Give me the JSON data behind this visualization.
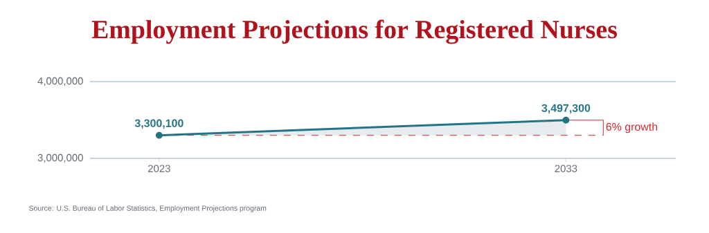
{
  "chart_data": {
    "type": "line",
    "title": "Employment Projections for Registered Nurses",
    "annotations": [
      "Source: U.S. Bureau of Labor Statistics, Employment Projections program"
    ],
    "x": [
      2023,
      2033
    ],
    "series": [
      {
        "color": "#237585",
        "values": [
          3300100,
          3497300
        ],
        "value_labels": [
          "3,300,100",
          "3,497,300"
        ],
        "lower": [
          3300100,
          3300100
        ],
        "upper": [
          3300100,
          3497300
        ]
      }
    ],
    "xlim": [
      2021.3,
      2035.7
    ],
    "xticks": [
      2023,
      2033
    ],
    "ylim": [
      3000000,
      4000000
    ],
    "yticks": [
      {
        "value": 3000000,
        "label": "3,000,000"
      },
      {
        "value": 4000000,
        "label": "4,000,000"
      }
    ],
    "ref_lines": [
      {
        "axis": "y",
        "value": 3300100,
        "label": "6% growth",
        "color": "#d0282e",
        "line_style": "dashed"
      }
    ],
    "marker": "circle",
    "line_style": "solid"
  }
}
